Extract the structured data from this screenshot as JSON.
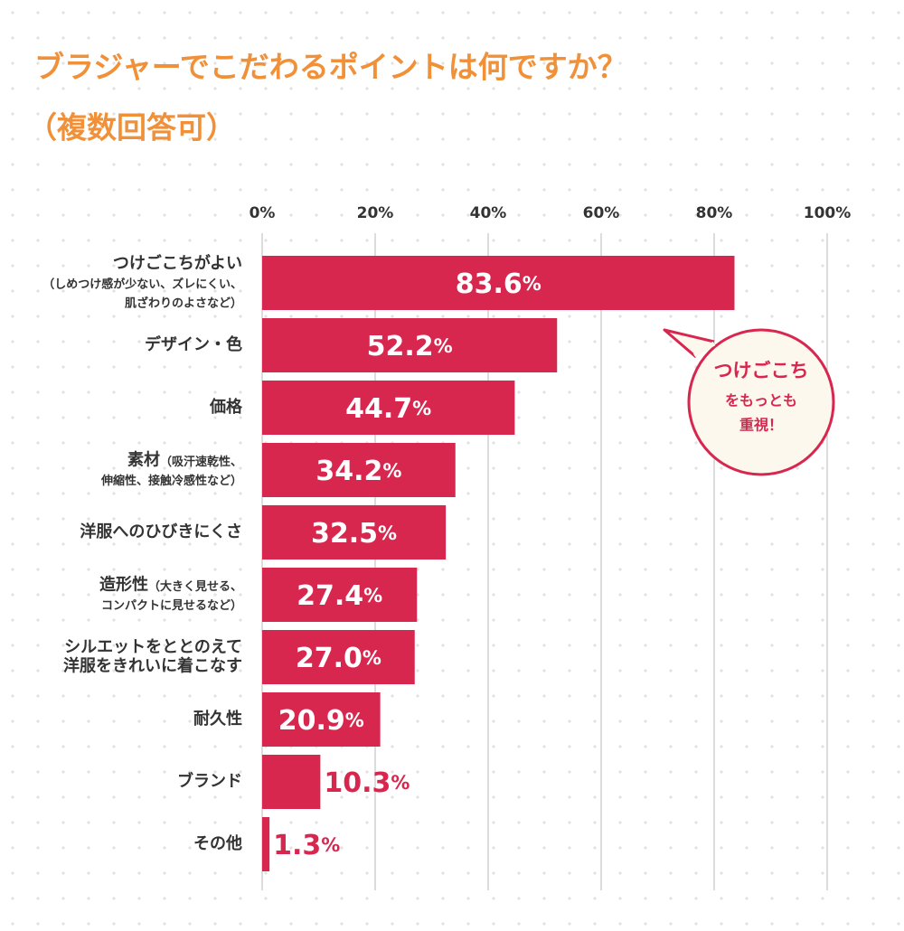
{
  "chart_data": {
    "type": "hbar",
    "title": "ブラジャーでこだわるポイントは何ですか？",
    "subtitle": "（複数回答可）",
    "categories": [
      [
        "つけごこちがよい"
      ],
      [
        "デザイン・色"
      ],
      [
        "価格"
      ],
      [
        "素材"
      ],
      [
        "洋服へのひびきにくさ"
      ],
      [
        "造形性"
      ],
      [
        "シルエットをととのえて",
        "洋服をきれいに着こなす"
      ],
      [
        "耐久性"
      ],
      [
        "ブランド"
      ],
      [
        "その他"
      ]
    ],
    "category_notes": [
      [
        "（しめつけ感が少ない、ズレにくい、",
        "肌ざわりのよさなど）"
      ],
      null,
      null,
      [
        "（吸汗速乾性、",
        "伸縮性、接触冷感性など）"
      ],
      null,
      [
        "（大きく見せる、",
        "コンパクトに見せるなど）"
      ],
      null,
      null,
      null,
      null
    ],
    "values": [
      83.6,
      52.2,
      44.7,
      34.2,
      32.5,
      27.4,
      27.0,
      20.9,
      10.3,
      1.3
    ],
    "value_labels": [
      "83.6%",
      "52.2%",
      "44.7%",
      "34.2%",
      "32.5%",
      "27.4%",
      "27.0%",
      "20.9%",
      "10.3%",
      "1.3%"
    ],
    "color": "#d8274f",
    "xlim": [
      0,
      100
    ],
    "xticks": [
      {
        "value": 0,
        "label": "0%"
      },
      {
        "value": 20,
        "label": "20%"
      },
      {
        "value": 40,
        "label": "40%"
      },
      {
        "value": 60,
        "label": "60%"
      },
      {
        "value": 80,
        "label": "80%"
      },
      {
        "value": 100,
        "label": "100%"
      }
    ],
    "grid": true,
    "annotation": [
      "つけごこち",
      "をもっとも",
      "重視！"
    ]
  }
}
